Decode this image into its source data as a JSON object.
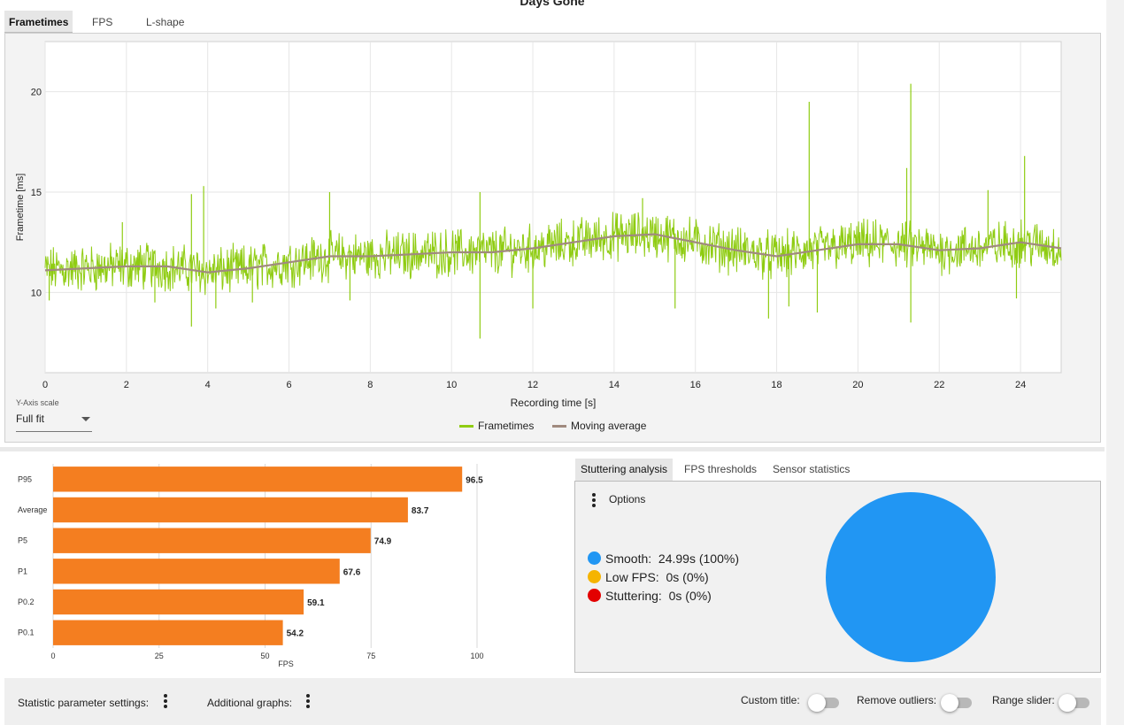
{
  "window": {
    "title": "Days Gone"
  },
  "top_tabs": [
    {
      "label": "Frametimes",
      "active": true
    },
    {
      "label": "FPS",
      "active": false
    },
    {
      "label": "L-shape",
      "active": false
    }
  ],
  "frametime_chart": {
    "y_axis_scale_label": "Y-Axis scale",
    "y_axis_scale_value": "Full fit",
    "legend": [
      {
        "label": "Frametimes",
        "color": "#8fcc12"
      },
      {
        "label": "Moving average",
        "color": "#a08a7e"
      }
    ]
  },
  "bottom_tabs": [
    {
      "label": "Stuttering analysis",
      "active": true
    },
    {
      "label": "FPS thresholds",
      "active": false
    },
    {
      "label": "Sensor statistics",
      "active": false
    }
  ],
  "stuttering": {
    "options_label": "Options",
    "items": [
      {
        "label": "Smooth:",
        "value": "24.99s (100%)",
        "color": "#2196f3"
      },
      {
        "label": "Low FPS:",
        "value": "0s (0%)",
        "color": "#f5b400"
      },
      {
        "label": "Stuttering:",
        "value": "0s (0%)",
        "color": "#e30000"
      }
    ],
    "pie_color": "#2196f3"
  },
  "bottom_bar": {
    "statistic_label": "Statistic parameter settings:",
    "additional_label": "Additional graphs:",
    "custom_title_label": "Custom title:",
    "remove_outliers_label": "Remove outliers:",
    "range_slider_label": "Range slider:"
  },
  "chart_data": [
    {
      "type": "line",
      "title": "Days Gone",
      "xlabel": "Recording time [s]",
      "ylabel": "Frametime [ms]",
      "xlim": [
        0,
        25
      ],
      "ylim": [
        6,
        22.5
      ],
      "x_ticks": [
        "0",
        "2",
        "4",
        "6",
        "8",
        "10",
        "12",
        "14",
        "16",
        "18",
        "20",
        "22",
        "24"
      ],
      "y_ticks": [
        "10",
        "15",
        "20"
      ],
      "series": [
        {
          "name": "Frametimes",
          "note": "noisy frametime trace around the moving average",
          "x": [
            0,
            1,
            2,
            3,
            4,
            5,
            6,
            7,
            8,
            9,
            10,
            11,
            12,
            13,
            14,
            15,
            16,
            17,
            18,
            19,
            20,
            21,
            22,
            23,
            24,
            25
          ],
          "values": [
            11.1,
            11.2,
            11.3,
            11.3,
            11.0,
            11.2,
            11.5,
            11.8,
            11.8,
            11.9,
            12.0,
            12.0,
            12.2,
            12.5,
            12.8,
            12.9,
            12.5,
            12.1,
            11.8,
            12.1,
            12.4,
            12.4,
            12.1,
            12.2,
            12.5,
            12.2
          ],
          "spikes": [
            [
              0.1,
              9.6
            ],
            [
              0.5,
              10.5
            ],
            [
              1.9,
              13.5
            ],
            [
              2.7,
              9.5
            ],
            [
              3.6,
              8.3
            ],
            [
              3.9,
              15.3
            ],
            [
              3.6,
              14.9
            ],
            [
              4.2,
              9.2
            ],
            [
              5.1,
              9.5
            ],
            [
              7.0,
              15.0
            ],
            [
              7.5,
              9.6
            ],
            [
              10.7,
              7.7
            ],
            [
              10.7,
              15.0
            ],
            [
              12.0,
              9.2
            ],
            [
              14.7,
              14.7
            ],
            [
              15.5,
              9.2
            ],
            [
              17.8,
              8.7
            ],
            [
              18.3,
              9.3
            ],
            [
              18.8,
              19.5
            ],
            [
              19.0,
              9.0
            ],
            [
              21.3,
              20.4
            ],
            [
              21.3,
              8.5
            ],
            [
              21.2,
              16.2
            ],
            [
              23.2,
              15.1
            ],
            [
              24.1,
              16.8
            ],
            [
              23.9,
              9.7
            ]
          ],
          "color": "#8fcc12"
        },
        {
          "name": "Moving average",
          "x": [
            0,
            1,
            2,
            3,
            4,
            5,
            6,
            7,
            8,
            9,
            10,
            11,
            12,
            13,
            14,
            15,
            16,
            17,
            18,
            19,
            20,
            21,
            22,
            23,
            24,
            25
          ],
          "values": [
            11.1,
            11.2,
            11.3,
            11.3,
            11.0,
            11.2,
            11.5,
            11.8,
            11.8,
            11.9,
            12.0,
            12.0,
            12.2,
            12.5,
            12.8,
            12.9,
            12.5,
            12.1,
            11.8,
            12.1,
            12.4,
            12.4,
            12.1,
            12.2,
            12.5,
            12.2
          ],
          "color": "#a08a7e"
        }
      ]
    },
    {
      "type": "bar",
      "orientation": "horizontal",
      "xlabel": "FPS",
      "xlim": [
        0,
        100
      ],
      "x_ticks": [
        "0",
        "25",
        "50",
        "75",
        "100"
      ],
      "categories": [
        "P95",
        "Average",
        "P5",
        "P1",
        "P0.2",
        "P0.1"
      ],
      "values": [
        96.5,
        83.7,
        74.9,
        67.6,
        59.1,
        54.2
      ],
      "value_labels": [
        "96.5",
        "83.7",
        "74.9",
        "67.6",
        "59.1",
        "54.2"
      ],
      "color": "#f47e20"
    },
    {
      "type": "pie",
      "categories": [
        "Smooth",
        "Low FPS",
        "Stuttering"
      ],
      "values": [
        100,
        0,
        0
      ],
      "colors": [
        "#2196f3",
        "#f5b400",
        "#e30000"
      ]
    }
  ]
}
